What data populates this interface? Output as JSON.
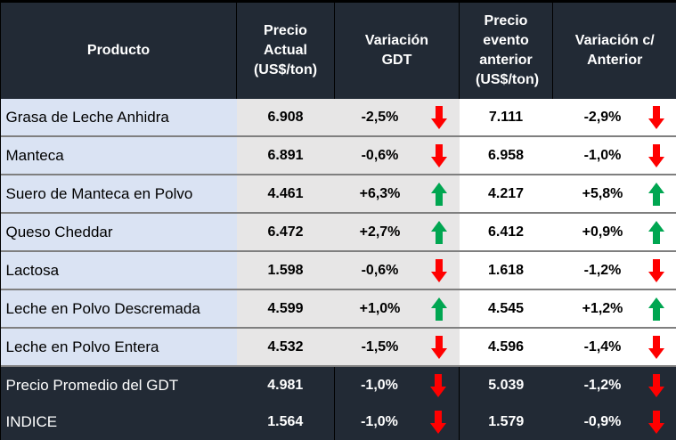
{
  "headers": [
    "Producto",
    "Precio Actual (US$/ton)",
    "Variación GDT",
    "Precio evento anterior (US$/ton)",
    "Variación c/ Anterior"
  ],
  "colors": {
    "up": "#00a651",
    "down": "#ff0000",
    "header_bg": "#222a35",
    "product_bg": "#dae3f3",
    "gdt_bg": "#e7e6e6"
  },
  "rows": [
    {
      "product": "Grasa de Leche Anhidra",
      "price": "6.908",
      "var_gdt": "-2,5%",
      "gdt_dir": "down",
      "prev": "7.111",
      "var_prev": "-2,9%",
      "prev_dir": "down"
    },
    {
      "product": "Manteca",
      "price": "6.891",
      "var_gdt": "-0,6%",
      "gdt_dir": "down",
      "prev": "6.958",
      "var_prev": "-1,0%",
      "prev_dir": "down"
    },
    {
      "product": "Suero de Manteca en Polvo",
      "price": "4.461",
      "var_gdt": "+6,3%",
      "gdt_dir": "up",
      "prev": "4.217",
      "var_prev": "+5,8%",
      "prev_dir": "up"
    },
    {
      "product": "Queso Cheddar",
      "price": "6.472",
      "var_gdt": "+2,7%",
      "gdt_dir": "up",
      "prev": "6.412",
      "var_prev": "+0,9%",
      "prev_dir": "up"
    },
    {
      "product": "Lactosa",
      "price": "1.598",
      "var_gdt": "-0,6%",
      "gdt_dir": "down",
      "prev": "1.618",
      "var_prev": "-1,2%",
      "prev_dir": "down"
    },
    {
      "product": "Leche en Polvo Descremada",
      "price": "4.599",
      "var_gdt": "+1,0%",
      "gdt_dir": "up",
      "prev": "4.545",
      "var_prev": "+1,2%",
      "prev_dir": "up"
    },
    {
      "product": "Leche en Polvo Entera",
      "price": "4.532",
      "var_gdt": "-1,5%",
      "gdt_dir": "down",
      "prev": "4.596",
      "var_prev": "-1,4%",
      "prev_dir": "down"
    },
    {
      "product": "Precio Promedio del GDT",
      "price": "4.981",
      "var_gdt": "-1,0%",
      "gdt_dir": "down",
      "prev": "5.039",
      "var_prev": "-1,2%",
      "prev_dir": "down",
      "dark": true
    },
    {
      "product": "INDICE",
      "price": "1.564",
      "var_gdt": "-1,0%",
      "gdt_dir": "down",
      "prev": "1.579",
      "var_prev": "-0,9%",
      "prev_dir": "down",
      "dark": true
    }
  ]
}
